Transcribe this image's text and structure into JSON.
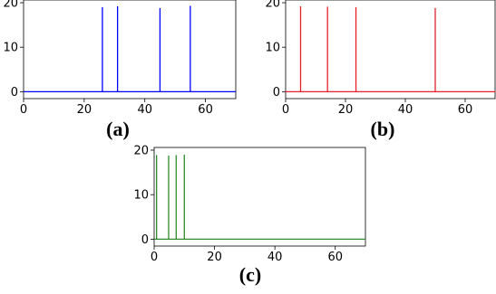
{
  "chart_data": [
    {
      "type": "line",
      "panel_label": "(a)",
      "xlim": [
        0,
        70
      ],
      "ylim": [
        0,
        20
      ],
      "x_ticks": [
        0,
        20,
        40,
        60
      ],
      "y_ticks": [
        0,
        10,
        20
      ],
      "grid": false,
      "color": "#0000ff",
      "baseline": 0,
      "spikes": [
        {
          "x": 26,
          "y": 19
        },
        {
          "x": 31,
          "y": 19.2
        },
        {
          "x": 45,
          "y": 18.8
        },
        {
          "x": 55,
          "y": 19.3
        }
      ]
    },
    {
      "type": "line",
      "panel_label": "(b)",
      "xlim": [
        0,
        70
      ],
      "ylim": [
        0,
        20
      ],
      "x_ticks": [
        0,
        20,
        40,
        60
      ],
      "y_ticks": [
        0,
        10,
        20
      ],
      "grid": false,
      "color": "#e8202a",
      "baseline": 0,
      "spikes": [
        {
          "x": 5,
          "y": 19.2
        },
        {
          "x": 14,
          "y": 19.1
        },
        {
          "x": 23.5,
          "y": 19
        },
        {
          "x": 50,
          "y": 18.8
        }
      ]
    },
    {
      "type": "line",
      "panel_label": "(c)",
      "xlim": [
        0,
        70
      ],
      "ylim": [
        0,
        20
      ],
      "x_ticks": [
        0,
        20,
        40,
        60
      ],
      "y_ticks": [
        0,
        10,
        20
      ],
      "grid": false,
      "color": "#2e8b2e",
      "baseline": 0,
      "spikes": [
        {
          "x": 0.8,
          "y": 18.9
        },
        {
          "x": 4.8,
          "y": 18.8
        },
        {
          "x": 7.3,
          "y": 18.9
        },
        {
          "x": 10,
          "y": 19
        }
      ]
    }
  ]
}
